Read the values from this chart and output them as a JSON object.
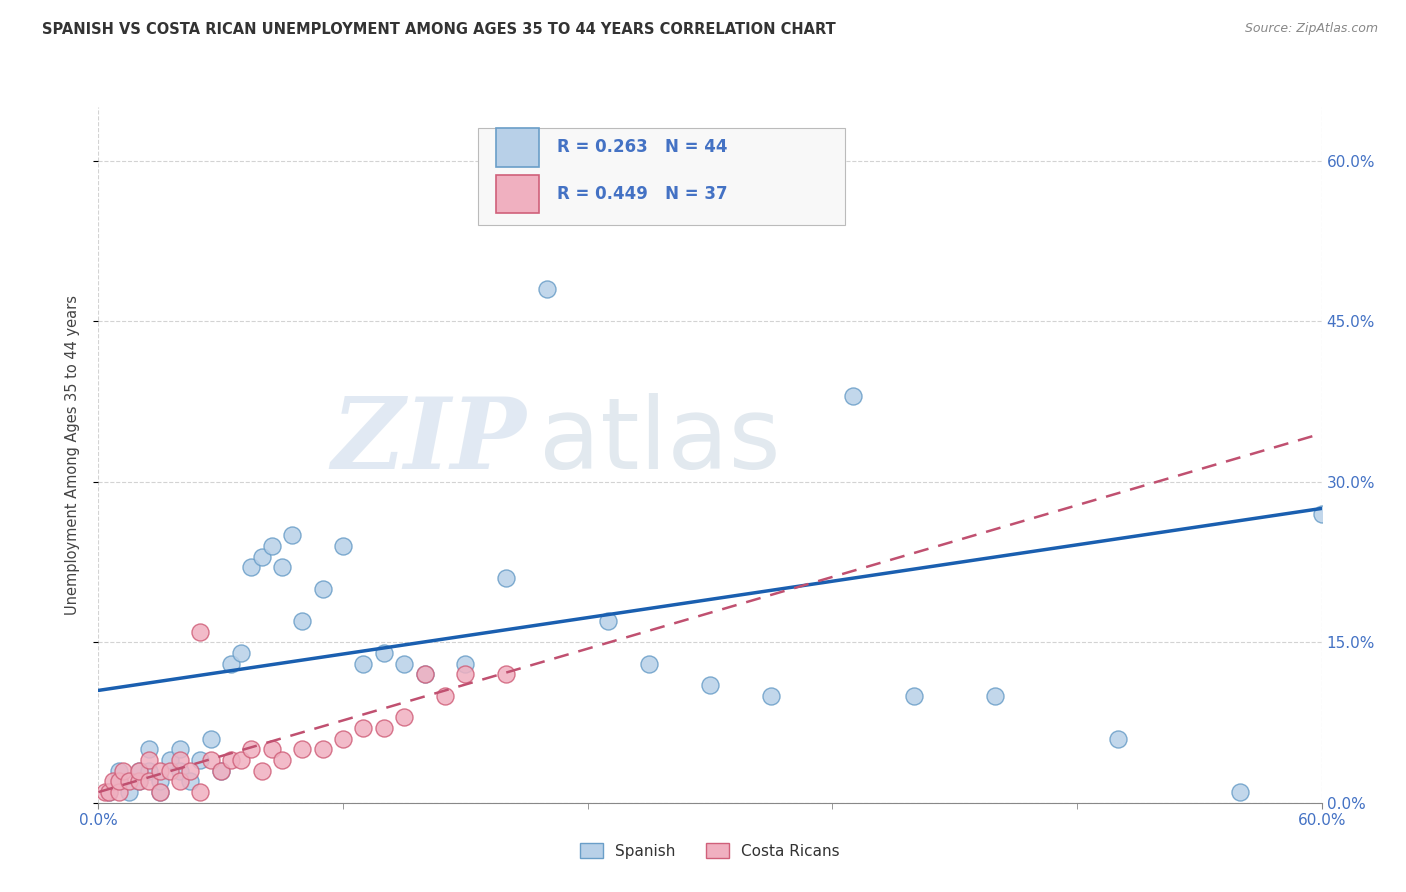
{
  "title": "SPANISH VS COSTA RICAN UNEMPLOYMENT AMONG AGES 35 TO 44 YEARS CORRELATION CHART",
  "source": "Source: ZipAtlas.com",
  "ylabel": "Unemployment Among Ages 35 to 44 years",
  "xlim": [
    0.0,
    0.6
  ],
  "ylim": [
    0.0,
    0.65
  ],
  "ytick_labels_right": [
    "0.0%",
    "15.0%",
    "30.0%",
    "45.0%",
    "60.0%"
  ],
  "ytick_vals_right": [
    0.0,
    0.15,
    0.3,
    0.45,
    0.6
  ],
  "xtick_vals": [
    0.0,
    0.6
  ],
  "xtick_labels": [
    "0.0%",
    "60.0%"
  ],
  "spanish_color": "#b8d0e8",
  "spanish_edge": "#6a9ec8",
  "costa_rican_color": "#f0b0c0",
  "costa_rican_edge": "#d0607a",
  "trendline_spanish_color": "#1a5fb0",
  "trendline_cr_color": "#c05070",
  "legend_r_spanish": "R = 0.263",
  "legend_n_spanish": "N = 44",
  "legend_r_cr": "R = 0.449",
  "legend_n_cr": "N = 37",
  "watermark_zip": "ZIP",
  "watermark_atlas": "atlas",
  "spanish_x": [
    0.005,
    0.01,
    0.01,
    0.015,
    0.02,
    0.02,
    0.025,
    0.025,
    0.03,
    0.03,
    0.035,
    0.04,
    0.04,
    0.045,
    0.05,
    0.055,
    0.06,
    0.065,
    0.07,
    0.075,
    0.08,
    0.085,
    0.09,
    0.095,
    0.1,
    0.11,
    0.12,
    0.13,
    0.14,
    0.15,
    0.16,
    0.18,
    0.2,
    0.22,
    0.25,
    0.27,
    0.3,
    0.33,
    0.37,
    0.4,
    0.44,
    0.5,
    0.56,
    0.6
  ],
  "spanish_y": [
    0.01,
    0.02,
    0.03,
    0.01,
    0.02,
    0.03,
    0.03,
    0.05,
    0.01,
    0.02,
    0.04,
    0.03,
    0.05,
    0.02,
    0.04,
    0.06,
    0.03,
    0.13,
    0.14,
    0.22,
    0.23,
    0.24,
    0.22,
    0.25,
    0.17,
    0.2,
    0.24,
    0.13,
    0.14,
    0.13,
    0.12,
    0.13,
    0.21,
    0.48,
    0.17,
    0.13,
    0.11,
    0.1,
    0.38,
    0.1,
    0.1,
    0.06,
    0.01,
    0.27
  ],
  "cr_x": [
    0.003,
    0.005,
    0.007,
    0.01,
    0.01,
    0.012,
    0.015,
    0.02,
    0.02,
    0.025,
    0.025,
    0.03,
    0.03,
    0.035,
    0.04,
    0.04,
    0.045,
    0.05,
    0.05,
    0.055,
    0.06,
    0.065,
    0.07,
    0.075,
    0.08,
    0.085,
    0.09,
    0.1,
    0.11,
    0.12,
    0.13,
    0.14,
    0.15,
    0.16,
    0.17,
    0.18,
    0.2
  ],
  "cr_y": [
    0.01,
    0.01,
    0.02,
    0.01,
    0.02,
    0.03,
    0.02,
    0.02,
    0.03,
    0.02,
    0.04,
    0.01,
    0.03,
    0.03,
    0.02,
    0.04,
    0.03,
    0.01,
    0.16,
    0.04,
    0.03,
    0.04,
    0.04,
    0.05,
    0.03,
    0.05,
    0.04,
    0.05,
    0.05,
    0.06,
    0.07,
    0.07,
    0.08,
    0.12,
    0.1,
    0.12,
    0.12
  ],
  "trendline_spanish_x0": 0.0,
  "trendline_spanish_y0": 0.105,
  "trendline_spanish_x1": 0.6,
  "trendline_spanish_y1": 0.275,
  "trendline_cr_x0": 0.0,
  "trendline_cr_y0": 0.01,
  "trendline_cr_x1": 0.6,
  "trendline_cr_y1": 0.345,
  "background_color": "#ffffff",
  "grid_color": "#c8c8c8",
  "title_color": "#333333",
  "source_color": "#888888",
  "tick_color": "#4472c4",
  "label_color": "#444444"
}
